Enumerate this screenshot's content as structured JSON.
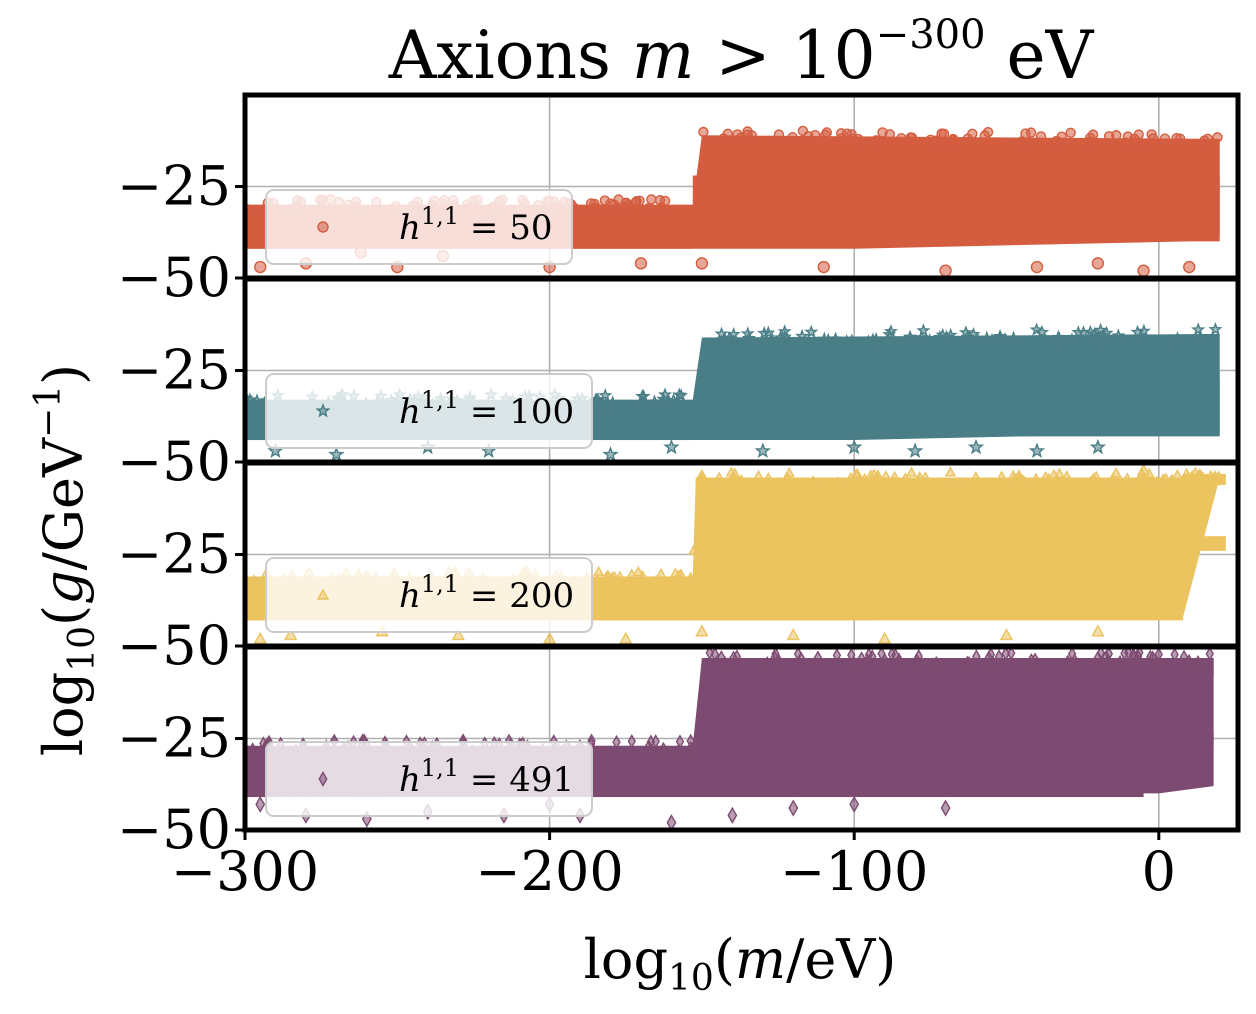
{
  "chart_data": {
    "type": "scatter",
    "title": {
      "main": "Axions ",
      "var": "m",
      "rel": " > 10",
      "exp": "−300",
      "unit": " eV"
    },
    "xlabel": {
      "pre": "log",
      "sub": "10",
      "open": "(",
      "var": "m",
      "unit": "/eV)"
    },
    "ylabel": {
      "pre": "log",
      "sub": "10",
      "open": "(",
      "var": "g",
      "unit": "/GeV",
      "exp": "−1",
      "close": ")"
    },
    "xlim": [
      -300,
      26
    ],
    "ylim": [
      -50,
      0
    ],
    "grid": true,
    "x_ticks": [
      {
        "value": -300,
        "label": "−300"
      },
      {
        "value": -200,
        "label": "−200"
      },
      {
        "value": -100,
        "label": "−100"
      },
      {
        "value": 0,
        "label": "0"
      }
    ],
    "y_ticks": [
      {
        "value": -25,
        "label": "−25"
      },
      {
        "value": -50,
        "label": "−50"
      }
    ],
    "legend_location": "lower-left",
    "panels": [
      {
        "series": "h11=50",
        "legend": {
          "var": "h",
          "sup": "1,1",
          "eq": " = ",
          "value": "50"
        },
        "color": "#d45d40",
        "marker": "circle",
        "bands": [
          {
            "x": [
              -300,
              -153
            ],
            "y": [
              -42,
              -30
            ]
          },
          {
            "x": [
              -153,
              20
            ],
            "y": [
              -38,
              -22
            ]
          }
        ],
        "upper_trend": [
          [
            -300,
            -30
          ],
          [
            -153,
            -30
          ],
          [
            -150,
            -11
          ],
          [
            20,
            -12
          ]
        ],
        "lower_trend": [
          [
            -300,
            -42
          ],
          [
            -100,
            -42
          ],
          [
            10,
            -40
          ],
          [
            20,
            -40
          ]
        ],
        "points": [
          [
            -295,
            -47
          ],
          [
            -280,
            -46
          ],
          [
            -250,
            -47
          ],
          [
            -235,
            -44
          ],
          [
            -200,
            -47
          ],
          [
            -170,
            -46
          ],
          [
            -150,
            -46
          ],
          [
            -110,
            -47
          ],
          [
            -70,
            -48
          ],
          [
            -40,
            -47
          ],
          [
            -20,
            -46
          ],
          [
            -5,
            -48
          ],
          [
            10,
            -47
          ],
          [
            -262,
            -43
          ]
        ]
      },
      {
        "series": "h11=100",
        "legend": {
          "var": "h",
          "sup": "1,1",
          "eq": " = ",
          "value": "100"
        },
        "color": "#4a7e87",
        "marker": "star",
        "bands": [
          {
            "x": [
              -300,
              -153
            ],
            "y": [
              -44,
              -33
            ]
          },
          {
            "x": [
              -150,
              20
            ],
            "y": [
              -43,
              -27
            ]
          }
        ],
        "upper_trend": [
          [
            -300,
            -33
          ],
          [
            -153,
            -33
          ],
          [
            -150,
            -16
          ],
          [
            20,
            -15
          ]
        ],
        "lower_trend": [
          [
            -300,
            -44
          ],
          [
            -100,
            -44
          ],
          [
            10,
            -42
          ],
          [
            20,
            -42
          ]
        ],
        "points": [
          [
            -290,
            -47
          ],
          [
            -270,
            -48
          ],
          [
            -240,
            -46
          ],
          [
            -220,
            -47
          ],
          [
            -180,
            -48
          ],
          [
            -160,
            -46
          ],
          [
            -130,
            -47
          ],
          [
            -100,
            -46
          ],
          [
            -80,
            -47
          ],
          [
            -60,
            -46
          ],
          [
            -40,
            -47
          ],
          [
            -20,
            -46
          ]
        ]
      },
      {
        "series": "h11=200",
        "legend": {
          "var": "h",
          "sup": "1,1",
          "eq": " = ",
          "value": "200"
        },
        "color": "#ebc35f",
        "marker": "triangle",
        "bands": [
          {
            "x": [
              -300,
              -153
            ],
            "y": [
              -43,
              -31
            ]
          },
          {
            "x": [
              -152,
              8
            ],
            "y": [
              -43,
              -4
            ]
          },
          {
            "x": [
              8,
              22
            ],
            "y": [
              -24,
              -20
            ]
          },
          {
            "x": [
              8,
              22
            ],
            "y": [
              -6,
              -3
            ]
          }
        ],
        "upper_trend": [
          [
            -300,
            -31
          ],
          [
            -153,
            -31
          ],
          [
            -152,
            -4
          ],
          [
            20,
            -4
          ]
        ],
        "lower_trend": [
          [
            -300,
            -43
          ],
          [
            -100,
            -43
          ],
          [
            0,
            -42
          ],
          [
            8,
            -42
          ]
        ],
        "points": [
          [
            -295,
            -48
          ],
          [
            -285,
            -47
          ],
          [
            -255,
            -46
          ],
          [
            -230,
            -47
          ],
          [
            -200,
            -48
          ],
          [
            -175,
            -48
          ],
          [
            -150,
            -46
          ],
          [
            -120,
            -47
          ],
          [
            -90,
            -48
          ],
          [
            -50,
            -47
          ],
          [
            -20,
            -46
          ],
          [
            -5,
            -2
          ]
        ]
      },
      {
        "series": "h11=491",
        "legend": {
          "var": "h",
          "sup": "1,1",
          "eq": " = ",
          "value": "491"
        },
        "color": "#7d4a71",
        "marker": "diamond",
        "bands": [
          {
            "x": [
              -300,
              -5
            ],
            "y": [
              -41,
              -27
            ]
          },
          {
            "x": [
              -150,
              18
            ],
            "y": [
              -27,
              -23
            ]
          },
          {
            "x": [
              -150,
              18
            ],
            "y": [
              -8,
              -3
            ]
          },
          {
            "x": [
              -150,
              0
            ],
            "y": [
              -20,
              -12
            ]
          },
          {
            "x": [
              -150,
              0
            ],
            "y": [
              -38,
              -33
            ]
          }
        ],
        "upper_trend": [
          [
            -300,
            -27
          ],
          [
            -153,
            -27
          ],
          [
            -150,
            -3
          ],
          [
            18,
            -3
          ]
        ],
        "lower_trend": [
          [
            -300,
            -41
          ],
          [
            -100,
            -40
          ],
          [
            0,
            -40
          ],
          [
            18,
            -38
          ]
        ],
        "points": [
          [
            -295,
            -43
          ],
          [
            -280,
            -46
          ],
          [
            -260,
            -47
          ],
          [
            -240,
            -45
          ],
          [
            -215,
            -46
          ],
          [
            -200,
            -43
          ],
          [
            -190,
            -46
          ],
          [
            -160,
            -48
          ],
          [
            -140,
            -46
          ],
          [
            -120,
            -44
          ],
          [
            -100,
            -43
          ],
          [
            -70,
            -44
          ]
        ]
      }
    ]
  }
}
